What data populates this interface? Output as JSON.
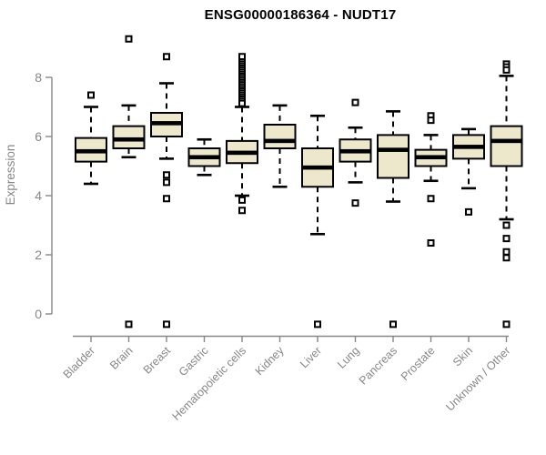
{
  "chart_data": {
    "type": "box",
    "title": "ENSG00000186364 - NUDT17",
    "ylabel": "Expression",
    "xlabel": "",
    "ylim": [
      0,
      8
    ],
    "yticks": [
      0,
      2,
      4,
      6,
      8
    ],
    "grid": false,
    "legend": null,
    "colors": {
      "box_fill": "#EDE7CB",
      "box_border": "#000000",
      "median": "#000000",
      "axis": "#878787",
      "title": "#000000"
    },
    "categories": [
      "Bladder",
      "Brain",
      "Breast",
      "Gastric",
      "Hematopoietic cells",
      "Kidney",
      "Liver",
      "Lung",
      "Pancreas",
      "Prostate",
      "Skin",
      "Unknown / Other"
    ],
    "boxes": [
      {
        "label": "Bladder",
        "whislo": 4.4,
        "q1": 5.15,
        "med": 5.5,
        "q3": 5.95,
        "whishi": 7.0,
        "outliers": [
          7.4
        ]
      },
      {
        "label": "Brain",
        "whislo": 5.3,
        "q1": 5.6,
        "med": 5.9,
        "q3": 6.35,
        "whishi": 7.05,
        "outliers": [
          9.3,
          -0.35
        ]
      },
      {
        "label": "Breast",
        "whislo": 5.25,
        "q1": 6.0,
        "med": 6.45,
        "q3": 6.8,
        "whishi": 7.8,
        "outliers": [
          8.7,
          4.7,
          4.45,
          3.9,
          -0.35
        ]
      },
      {
        "label": "Gastric",
        "whislo": 4.7,
        "q1": 5.0,
        "med": 5.3,
        "q3": 5.6,
        "whishi": 5.9,
        "outliers": []
      },
      {
        "label": "Hematopoietic cells",
        "whislo": 4.0,
        "q1": 5.1,
        "med": 5.45,
        "q3": 5.85,
        "whishi": 7.0,
        "outliers": [
          8.7,
          8.52,
          8.45,
          8.38,
          8.31,
          8.24,
          8.17,
          8.1,
          8.03,
          7.96,
          7.89,
          7.82,
          7.75,
          7.68,
          7.61,
          7.54,
          7.47,
          7.4,
          7.33,
          7.26,
          7.19,
          7.12,
          3.85,
          3.5
        ]
      },
      {
        "label": "Kidney",
        "whislo": 4.3,
        "q1": 5.6,
        "med": 5.85,
        "q3": 6.4,
        "whishi": 7.05,
        "outliers": []
      },
      {
        "label": "Liver",
        "whislo": 2.7,
        "q1": 4.3,
        "med": 4.95,
        "q3": 5.6,
        "whishi": 6.7,
        "outliers": [
          -0.35
        ]
      },
      {
        "label": "Lung",
        "whislo": 4.45,
        "q1": 5.15,
        "med": 5.5,
        "q3": 5.9,
        "whishi": 6.3,
        "outliers": [
          7.15,
          3.75
        ]
      },
      {
        "label": "Pancreas",
        "whislo": 3.8,
        "q1": 4.6,
        "med": 5.55,
        "q3": 6.05,
        "whishi": 6.85,
        "outliers": [
          -0.35
        ]
      },
      {
        "label": "Prostate",
        "whislo": 4.5,
        "q1": 5.0,
        "med": 5.3,
        "q3": 5.55,
        "whishi": 6.05,
        "outliers": [
          6.7,
          6.55,
          3.9,
          2.4
        ]
      },
      {
        "label": "Skin",
        "whislo": 4.25,
        "q1": 5.25,
        "med": 5.65,
        "q3": 6.05,
        "whishi": 6.25,
        "outliers": [
          3.45
        ]
      },
      {
        "label": "Unknown / Other",
        "whislo": 3.2,
        "q1": 5.0,
        "med": 5.85,
        "q3": 6.35,
        "whishi": 8.05,
        "outliers": [
          8.45,
          8.35,
          8.25,
          3.0,
          2.55,
          2.1,
          1.9,
          -0.35
        ]
      }
    ]
  }
}
